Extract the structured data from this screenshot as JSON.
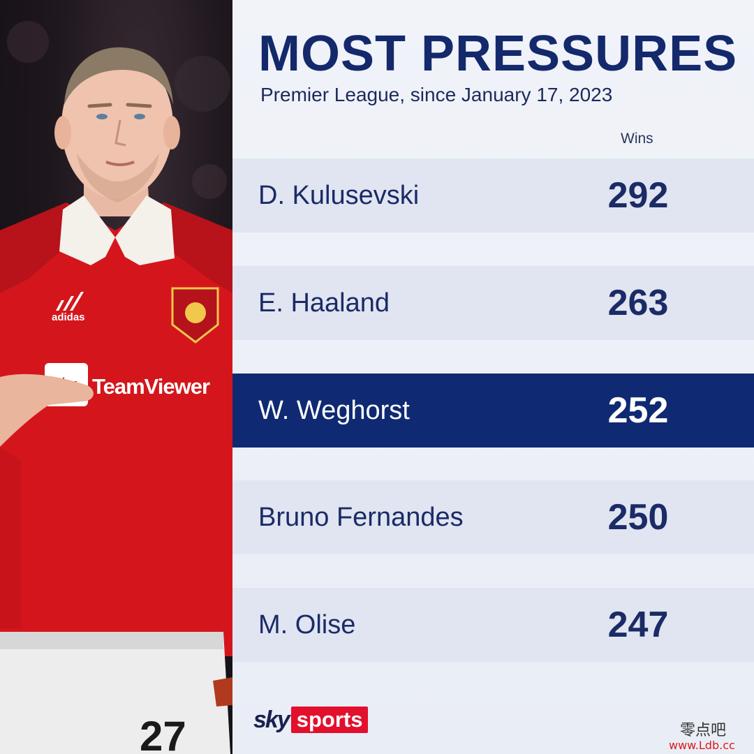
{
  "title": "MOST PRESSURES",
  "subtitle": "Premier League, since January 17, 2023",
  "column_header": "Wins",
  "rows": [
    {
      "name": "D. Kulusevski",
      "value": "292",
      "highlight": false
    },
    {
      "name": "E. Haaland",
      "value": "263",
      "highlight": false
    },
    {
      "name": "W. Weghorst",
      "value": "252",
      "highlight": true
    },
    {
      "name": "Bruno Fernandes",
      "value": "250",
      "highlight": false
    },
    {
      "name": "M. Olise",
      "value": "247",
      "highlight": false
    }
  ],
  "photo": {
    "sponsor_text": "TeamViewer",
    "kit_brand": "adidas",
    "shirt_number": "27"
  },
  "logo": {
    "sky": "sky",
    "sports": "sports"
  },
  "watermark": {
    "cn": "零点吧",
    "url": "www.Ldb.cc"
  },
  "colors": {
    "navy": "#14296b",
    "highlight_row": "#0f2a72",
    "row_bg": "#e0e5f1",
    "panel_bg": "#eef1f8",
    "sky_red": "#e2102c",
    "kit_red": "#d4161c"
  }
}
